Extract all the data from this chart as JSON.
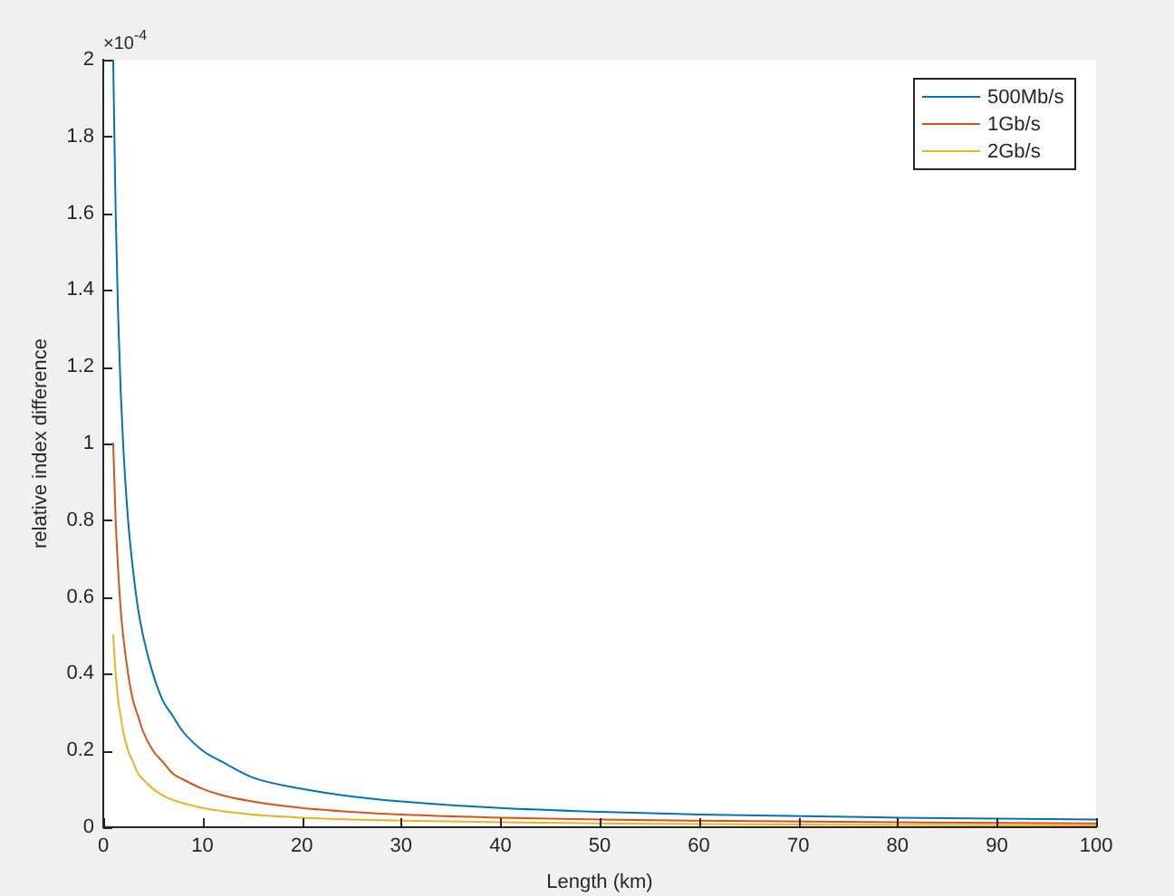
{
  "chart_data": {
    "type": "line",
    "xlabel": "Length (km)",
    "ylabel": "relative index difference",
    "annotations": [
      "×10$^{-4}$"
    ],
    "x": [
      1,
      1.25,
      1.5,
      1.75,
      2,
      2.5,
      3,
      3.5,
      4,
      5,
      6,
      7,
      8,
      10,
      12,
      15,
      20,
      25,
      30,
      40,
      50,
      60,
      80,
      100
    ],
    "series": [
      {
        "name": "500Mb/s",
        "color": "#0072bd",
        "values": [
          2,
          1.6,
          1.33,
          1.14,
          1,
          0.8,
          0.67,
          0.57,
          0.5,
          0.4,
          0.33,
          0.29,
          0.25,
          0.2,
          0.17,
          0.13,
          0.1,
          0.08,
          0.067,
          0.05,
          0.04,
          0.033,
          0.025,
          0.02
        ]
      },
      {
        "name": "1Gb/s",
        "color": "#d95319",
        "values": [
          1,
          0.8,
          0.67,
          0.57,
          0.5,
          0.4,
          0.33,
          0.29,
          0.25,
          0.2,
          0.17,
          0.14,
          0.125,
          0.1,
          0.083,
          0.067,
          0.05,
          0.04,
          0.033,
          0.025,
          0.02,
          0.017,
          0.013,
          0.01
        ]
      },
      {
        "name": "2Gb/s",
        "color": "#edb120",
        "values": [
          0.5,
          0.4,
          0.33,
          0.29,
          0.25,
          0.2,
          0.17,
          0.14,
          0.125,
          0.1,
          0.083,
          0.071,
          0.063,
          0.05,
          0.042,
          0.033,
          0.025,
          0.02,
          0.017,
          0.013,
          0.01,
          0.008,
          0.006,
          0.005
        ]
      }
    ],
    "xlim": [
      0,
      100
    ],
    "xticks": [
      0,
      10,
      20,
      30,
      40,
      50,
      60,
      70,
      80,
      90,
      100
    ],
    "ylim": [
      0,
      2
    ],
    "yticks": [
      0,
      0.2,
      0.4,
      0.6,
      0.8,
      1,
      1.2,
      1.4,
      1.6,
      1.8,
      2
    ],
    "grid": false,
    "legend": "top right",
    "marker": "none",
    "line_style": "solid"
  }
}
